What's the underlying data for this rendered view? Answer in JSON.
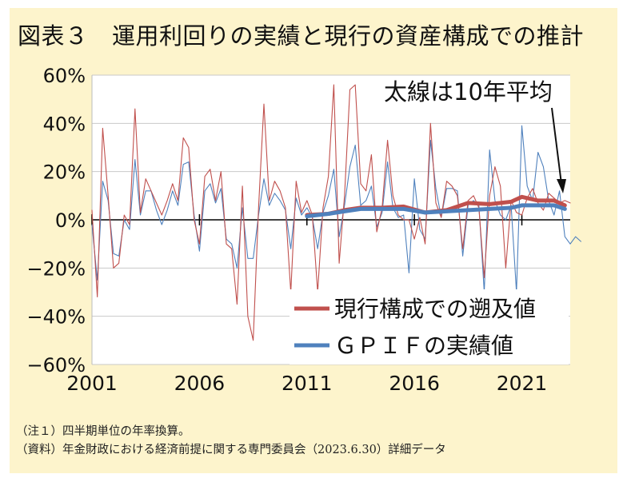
{
  "title": "図表３　運用利回りの実績と現行の資産構成での推計",
  "notes": {
    "note1": "（注１）四半期単位の年率換算。",
    "source": "（資料）年金財政における経済前提に関する専門委員会（2023.6.30）詳細データ"
  },
  "colors": {
    "red": "#c0504d",
    "blue": "#4f81bd",
    "background": "#fdf4cc"
  },
  "chart_data": {
    "type": "line",
    "ylim": [
      -60,
      60
    ],
    "xlim": [
      2001,
      2023.25
    ],
    "y_ticks": [
      {
        "value": 60,
        "label": "60%"
      },
      {
        "value": 40,
        "label": "40%"
      },
      {
        "value": 20,
        "label": "20%"
      },
      {
        "value": 0,
        "label": "0%"
      },
      {
        "value": -20,
        "label": "-20%"
      },
      {
        "value": -40,
        "label": "-40%"
      },
      {
        "value": -60,
        "label": "-60%"
      }
    ],
    "x_ticks": [
      {
        "value": 2001,
        "label": "2001"
      },
      {
        "value": 2006,
        "label": "2006"
      },
      {
        "value": 2011,
        "label": "2011"
      },
      {
        "value": 2016,
        "label": "2016"
      },
      {
        "value": 2021,
        "label": "2021"
      }
    ],
    "annotation": "太線は10年平均",
    "legend": {
      "position": "bottom-right",
      "entries": [
        {
          "label": "現行構成での遡及値",
          "color": "#c0504d"
        },
        {
          "label": "ＧＰＩＦの実績値",
          "color": "#4f81bd"
        }
      ]
    },
    "series": [
      {
        "name": "現行構成での遡及値",
        "style": "thin",
        "color": "#c0504d",
        "x0": 2001,
        "step": 0.25,
        "values": [
          4,
          -32,
          38,
          10,
          -20,
          -18,
          2,
          -2,
          46,
          3,
          17,
          12,
          7,
          2,
          8,
          15,
          8,
          34,
          30,
          0,
          -10,
          18,
          21,
          8,
          20,
          -10,
          -12,
          -35,
          14,
          -40,
          -50,
          5,
          48,
          8,
          16,
          12,
          5,
          -30,
          16,
          3,
          8,
          2,
          -30,
          5,
          18,
          56,
          -18,
          10,
          54,
          56,
          15,
          12,
          27,
          -5,
          5,
          33,
          10,
          2,
          0,
          0,
          -8,
          1,
          -10,
          40,
          7,
          1,
          16,
          14,
          10,
          -12,
          8,
          10,
          5,
          -24,
          10,
          22,
          14,
          -20,
          8,
          3,
          2,
          9,
          13,
          7,
          4,
          11,
          9,
          7,
          8,
          7
        ],
        "note": "Reconstructed approximate quarterly values read from the figure"
      },
      {
        "name": "ＧＰＩＦの実績値",
        "style": "thin",
        "color": "#4f81bd",
        "x0": 2001,
        "step": 0.25,
        "values": [
          -2,
          -25,
          16,
          8,
          -14,
          -15,
          0,
          -4,
          25,
          2,
          12,
          12,
          4,
          -2,
          4,
          12,
          6,
          23,
          24,
          2,
          -13,
          12,
          15,
          7,
          13,
          -8,
          -10,
          -20,
          5,
          -16,
          -16,
          2,
          17,
          6,
          11,
          8,
          4,
          -12,
          9,
          2,
          5,
          1,
          -12,
          3,
          10,
          21,
          -7,
          6,
          22,
          31,
          6,
          8,
          14,
          -3,
          3,
          24,
          5,
          1,
          2,
          -22,
          17,
          -4,
          -8,
          33,
          13,
          1,
          13,
          13,
          12,
          -15,
          6,
          8,
          6,
          -30,
          29,
          8,
          2,
          0,
          6,
          -30,
          39,
          14,
          8,
          28,
          22,
          8,
          2,
          12,
          -7,
          -10,
          -7,
          -9
        ],
        "note": "Reconstructed approximate quarterly values read from the figure"
      },
      {
        "name": "現行構成での遡及値（10年平均）",
        "style": "thick",
        "color": "#c0504d",
        "points": [
          [
            2011,
            2
          ],
          [
            2012,
            2.5
          ],
          [
            2012.75,
            4
          ],
          [
            2013.5,
            5
          ],
          [
            2014.5,
            5
          ],
          [
            2015.5,
            5.5
          ],
          [
            2016.5,
            3
          ],
          [
            2017.5,
            4
          ],
          [
            2018.5,
            7
          ],
          [
            2019.5,
            6.5
          ],
          [
            2020.5,
            7.5
          ],
          [
            2021,
            9.5
          ],
          [
            2021.75,
            8
          ],
          [
            2022.5,
            8
          ],
          [
            2023,
            6
          ]
        ]
      },
      {
        "name": "ＧＰＩＦの実績値（10年平均）",
        "style": "thick",
        "color": "#4f81bd",
        "points": [
          [
            2011,
            1.5
          ],
          [
            2012,
            2.5
          ],
          [
            2012.75,
            3.5
          ],
          [
            2013.5,
            4.5
          ],
          [
            2014.5,
            4.5
          ],
          [
            2015.5,
            4.5
          ],
          [
            2016.5,
            3
          ],
          [
            2017.5,
            3.5
          ],
          [
            2018.5,
            4
          ],
          [
            2019.5,
            4.5
          ],
          [
            2020.5,
            5
          ],
          [
            2021,
            6
          ],
          [
            2021.75,
            6
          ],
          [
            2022.5,
            6
          ],
          [
            2023,
            4.5
          ]
        ]
      }
    ]
  }
}
